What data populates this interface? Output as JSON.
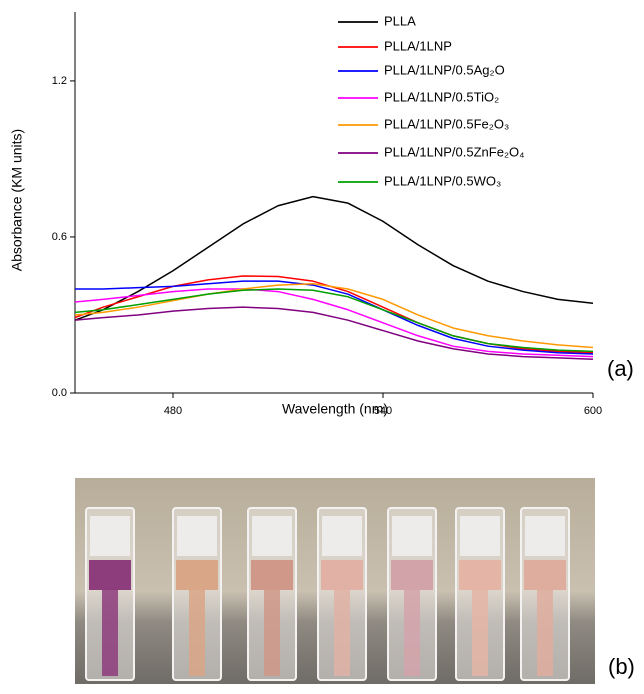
{
  "chart_data": {
    "type": "line",
    "xlabel": "Wavelength (nm)",
    "ylabel": "Absorbance (KM units)",
    "panel_label": "(a)",
    "x": [
      452,
      460,
      470,
      480,
      490,
      500,
      510,
      520,
      530,
      540,
      550,
      560,
      570,
      580,
      590,
      600
    ],
    "xlim": [
      452,
      600
    ],
    "xticks": [
      480,
      540,
      600
    ],
    "ylim": [
      0,
      1.465
    ],
    "yticks": [
      {
        "value": 0,
        "label": "0.0"
      },
      0.6,
      1.2
    ],
    "legend": "upper right",
    "series": [
      {
        "name": "PLLA",
        "color": "#000000",
        "values": [
          0.28,
          0.32,
          0.39,
          0.47,
          0.56,
          0.65,
          0.72,
          0.755,
          0.73,
          0.66,
          0.57,
          0.49,
          0.43,
          0.39,
          0.36,
          0.345
        ]
      },
      {
        "name": "PLLA/1LNP",
        "color": "#ff0000",
        "values": [
          0.29,
          0.33,
          0.37,
          0.41,
          0.435,
          0.45,
          0.448,
          0.43,
          0.39,
          0.33,
          0.27,
          0.22,
          0.19,
          0.17,
          0.16,
          0.155
        ]
      },
      {
        "name": "PLLA/1LNP/0.5Ag₂O",
        "color": "#0000ff",
        "values": [
          0.4,
          0.4,
          0.405,
          0.41,
          0.42,
          0.43,
          0.43,
          0.415,
          0.38,
          0.32,
          0.26,
          0.21,
          0.18,
          0.165,
          0.155,
          0.15
        ]
      },
      {
        "name": "PLLA/1LNP/0.5TiO₂",
        "color": "#ff00ff",
        "values": [
          0.35,
          0.36,
          0.375,
          0.39,
          0.4,
          0.4,
          0.39,
          0.36,
          0.32,
          0.27,
          0.22,
          0.18,
          0.16,
          0.15,
          0.145,
          0.14
        ]
      },
      {
        "name": "PLLA/1LNP/0.5Fe₂O₃",
        "color": "#ff9900",
        "values": [
          0.3,
          0.31,
          0.33,
          0.355,
          0.38,
          0.4,
          0.415,
          0.42,
          0.4,
          0.36,
          0.3,
          0.25,
          0.22,
          0.2,
          0.185,
          0.175
        ]
      },
      {
        "name": "PLLA/1LNP/0.5ZnFe₂O₄",
        "color": "#800080",
        "values": [
          0.28,
          0.29,
          0.3,
          0.315,
          0.325,
          0.33,
          0.325,
          0.31,
          0.28,
          0.24,
          0.2,
          0.17,
          0.15,
          0.14,
          0.135,
          0.13
        ]
      },
      {
        "name": "PLLA/1LNP/0.5WO₃",
        "color": "#00a000",
        "values": [
          0.31,
          0.32,
          0.34,
          0.36,
          0.38,
          0.395,
          0.4,
          0.395,
          0.37,
          0.32,
          0.27,
          0.22,
          0.19,
          0.175,
          0.165,
          0.16
        ]
      }
    ]
  },
  "photo": {
    "label": "(b)"
  }
}
